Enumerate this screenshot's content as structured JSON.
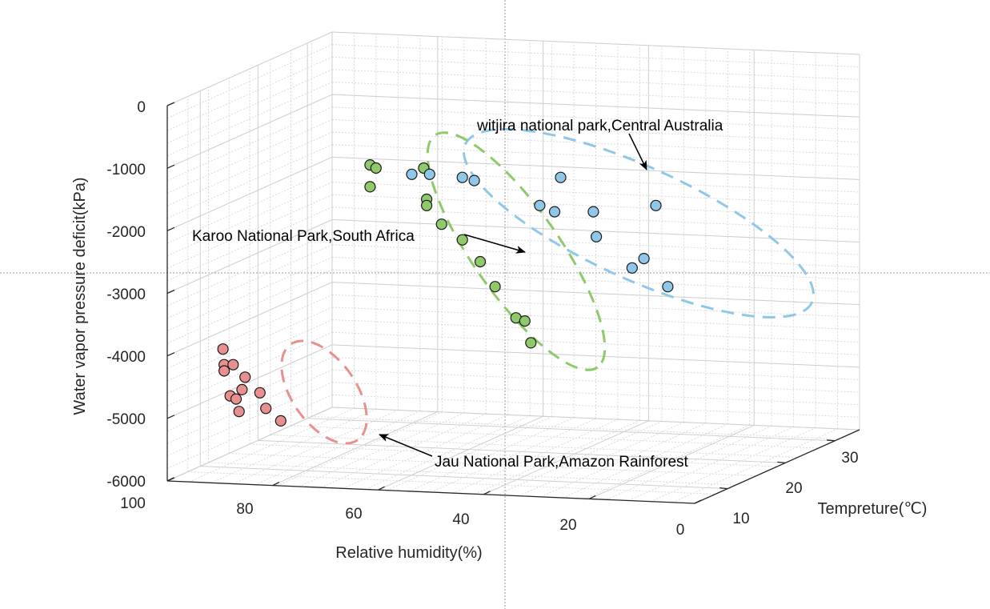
{
  "chart_data": {
    "type": "scatter",
    "title": "",
    "xlabel": "Relative humidity(%)",
    "ylabel": "Water vapor pressure deficit(kPa)",
    "zlabel": "Tempreture(℃)",
    "x_ticks": [
      "100",
      "80",
      "60",
      "40",
      "20",
      "0"
    ],
    "y_ticks": [
      "0",
      "-1000",
      "-2000",
      "-3000",
      "-4000",
      "-5000",
      "-6000"
    ],
    "z_ticks": [
      "10",
      "20",
      "30"
    ],
    "xlim": [
      0,
      100
    ],
    "ylim": [
      -6000,
      0
    ],
    "grid": true,
    "colors": {
      "forest": "#e88f8f",
      "karoo": "#8fc96a",
      "witjira": "#8ec7e8",
      "marker_edge": "#1a1a1a"
    },
    "series": [
      {
        "key": "forest",
        "points": [
          {
            "x": 89.7,
            "y": -3900
          },
          {
            "x": 89.5,
            "y": -4150
          },
          {
            "x": 88.0,
            "y": -4150
          },
          {
            "x": 89.5,
            "y": -4250
          },
          {
            "x": 86.0,
            "y": -4350
          },
          {
            "x": 88.5,
            "y": -4650
          },
          {
            "x": 86.5,
            "y": -4550
          },
          {
            "x": 87.5,
            "y": -4700
          },
          {
            "x": 83.5,
            "y": -4600
          },
          {
            "x": 87.0,
            "y": -4900
          },
          {
            "x": 82.5,
            "y": -4850
          },
          {
            "x": 80.0,
            "y": -5050
          }
        ]
      },
      {
        "key": "karoo",
        "points": [
          {
            "x": 65.0,
            "y": -950
          },
          {
            "x": 64.0,
            "y": -1000
          },
          {
            "x": 65.0,
            "y": -1300
          },
          {
            "x": 56.0,
            "y": -1000
          },
          {
            "x": 55.5,
            "y": -1500
          },
          {
            "x": 55.5,
            "y": -1600
          },
          {
            "x": 53.0,
            "y": -1900
          },
          {
            "x": 49.5,
            "y": -2150
          },
          {
            "x": 46.5,
            "y": -2500
          },
          {
            "x": 44.0,
            "y": -2900
          },
          {
            "x": 40.5,
            "y": -3400
          },
          {
            "x": 39.0,
            "y": -3450
          },
          {
            "x": 38.0,
            "y": -3800
          }
        ]
      },
      {
        "key": "witjira",
        "points": [
          {
            "x": 58.0,
            "y": -1100
          },
          {
            "x": 55.0,
            "y": -1100
          },
          {
            "x": 49.5,
            "y": -1150
          },
          {
            "x": 47.5,
            "y": -1200
          },
          {
            "x": 33.0,
            "y": -1150
          },
          {
            "x": 36.5,
            "y": -1600
          },
          {
            "x": 34.0,
            "y": -1700
          },
          {
            "x": 27.5,
            "y": -1700
          },
          {
            "x": 27.0,
            "y": -2100
          },
          {
            "x": 17.0,
            "y": -1600
          },
          {
            "x": 19.0,
            "y": -2450
          },
          {
            "x": 21.0,
            "y": -2600
          },
          {
            "x": 15.0,
            "y": -2900
          }
        ]
      }
    ],
    "annotations": [
      {
        "key": "witjira",
        "text": "witjira national park,Central Australia"
      },
      {
        "key": "karoo",
        "text": "Karoo National Park,South Africa"
      },
      {
        "key": "forest",
        "text": "Jau National Park,Amazon Rainforest"
      }
    ]
  }
}
